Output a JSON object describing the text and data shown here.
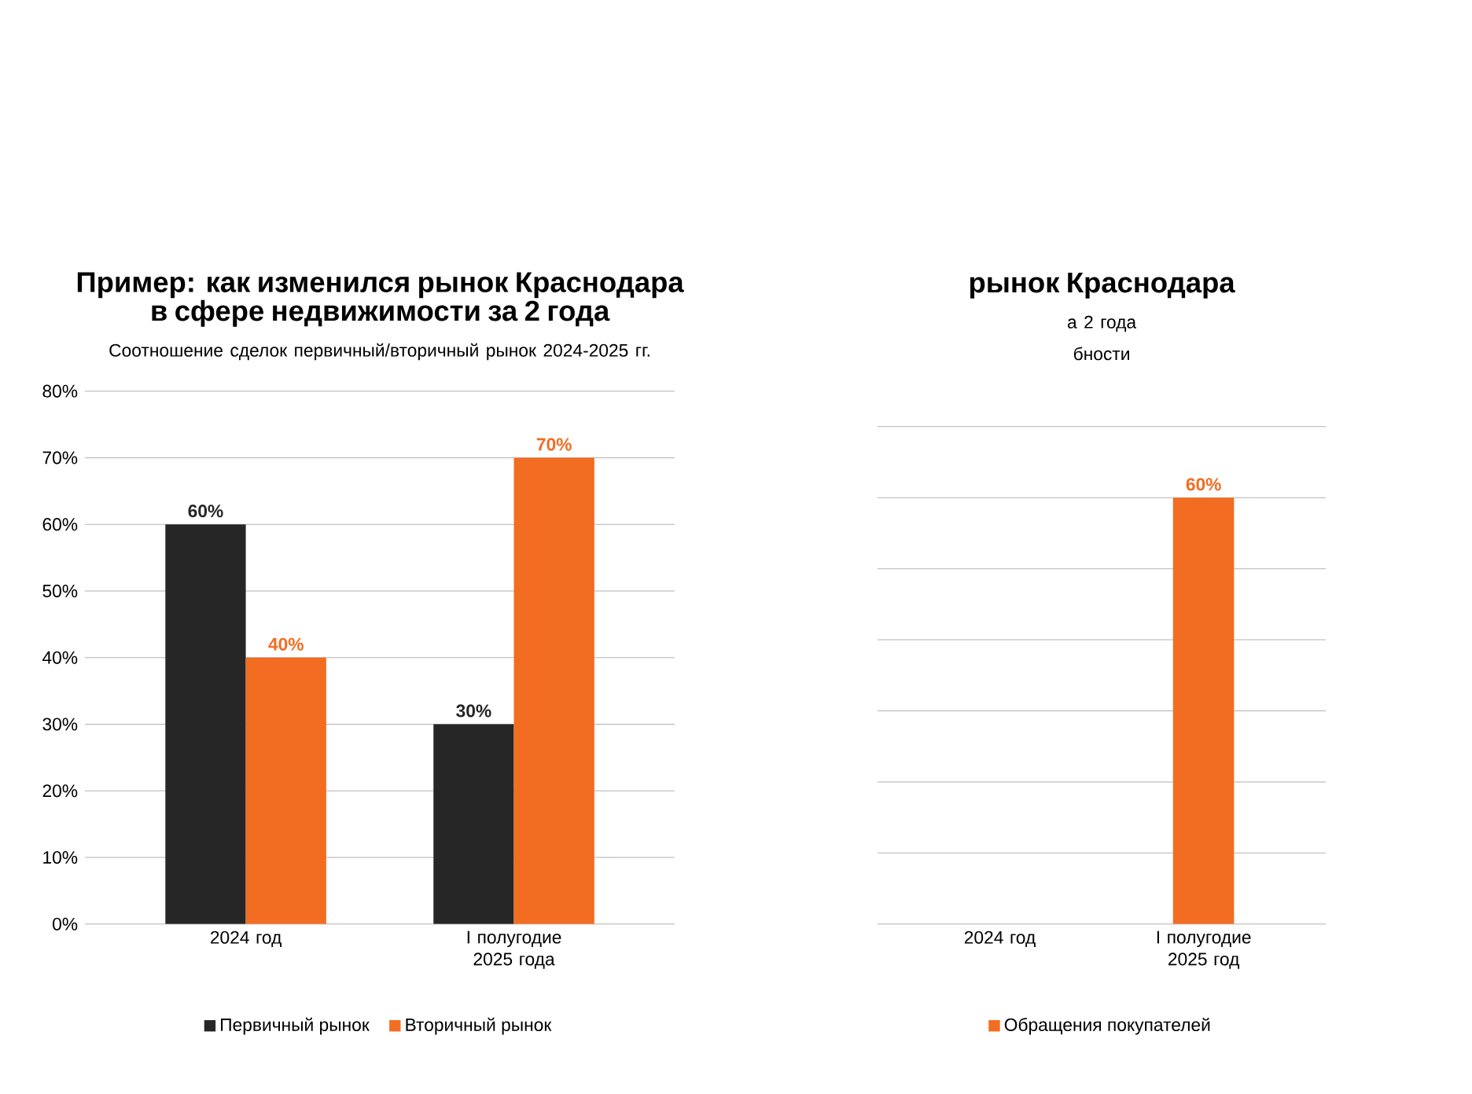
{
  "chart_data": [
    {
      "type": "bar",
      "title": "Пример: как изменился рынок Краснодара в сфере недвижимости за 2 года",
      "subtitle": "Соотношение сделок первичный/вторичный рынок 2024-2025 гг.",
      "categories": [
        "2024 год",
        "I полугодие 2025 года"
      ],
      "series": [
        {
          "name": "Первичный рынок",
          "color": "#262626",
          "values": [
            60,
            30
          ],
          "value_labels": [
            "60%",
            "30%"
          ]
        },
        {
          "name": "Вторичный рынок",
          "color": "#f26d21",
          "values": [
            40,
            70
          ],
          "value_labels": [
            "40%",
            "70%"
          ]
        }
      ],
      "ylim": [
        0,
        80
      ],
      "yticks": [
        {
          "value": 0,
          "label": "0%"
        },
        {
          "value": 10,
          "label": "10%"
        },
        {
          "value": 20,
          "label": "20%"
        },
        {
          "value": 30,
          "label": "30%"
        },
        {
          "value": 40,
          "label": "40%"
        },
        {
          "value": 50,
          "label": "50%"
        },
        {
          "value": 60,
          "label": "60%"
        },
        {
          "value": 70,
          "label": "70%"
        },
        {
          "value": 80,
          "label": "80%"
        }
      ],
      "grid": "y",
      "legend": "bottom"
    },
    {
      "type": "bar",
      "title": "рынок Краснодара",
      "subtitle": "а 2 года",
      "annotations": [
        "бности"
      ],
      "categories": [
        "2024 год",
        "I полугодие 2025 год"
      ],
      "series": [
        {
          "name": "Обращения покупателей",
          "color": "#f26d21",
          "values": [
            null,
            60
          ],
          "value_labels": [
            null,
            "60%"
          ]
        }
      ],
      "grid": "y",
      "legend": "bottom",
      "tick_labels": "x"
    }
  ]
}
